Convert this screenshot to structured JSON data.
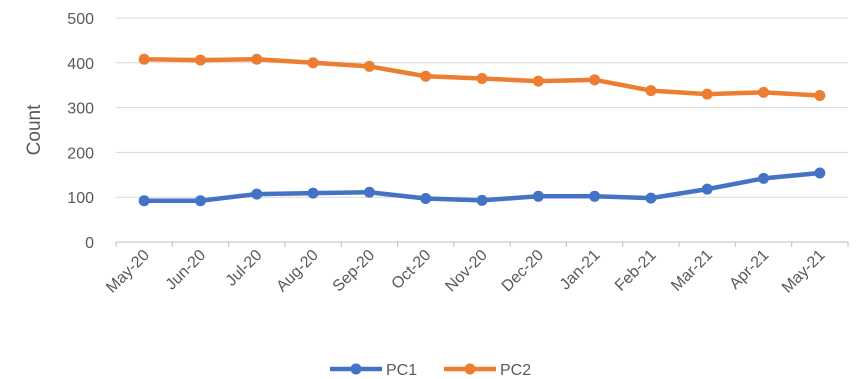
{
  "chart_data": {
    "type": "line",
    "title": "",
    "xlabel": "",
    "ylabel": "Count",
    "categories": [
      "May-20",
      "Jun-20",
      "Jul-20",
      "Aug-20",
      "Sep-20",
      "Oct-20",
      "Nov-20",
      "Dec-20",
      "Jan-21",
      "Feb-21",
      "Mar-21",
      "Apr-21",
      "May-21"
    ],
    "ylim": [
      0,
      500
    ],
    "yticks": [
      0,
      100,
      200,
      300,
      400,
      500
    ],
    "grid": true,
    "legend": "bottom",
    "series": [
      {
        "name": "PC1",
        "color": "#4472C4",
        "values": [
          92,
          92,
          107,
          109,
          111,
          97,
          93,
          102,
          102,
          98,
          118,
          142,
          154
        ]
      },
      {
        "name": "PC2",
        "color": "#ED7D31",
        "values": [
          408,
          406,
          408,
          400,
          392,
          370,
          365,
          359,
          362,
          338,
          330,
          334,
          327
        ]
      }
    ]
  }
}
